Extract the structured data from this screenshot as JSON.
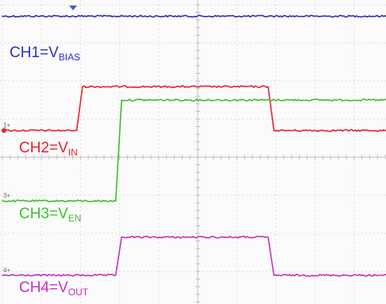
{
  "chart_data": {
    "type": "line",
    "grid": true,
    "grid_divisions": {
      "horizontal": 10,
      "vertical": 8
    },
    "trigger_marker_color": "#3a5fcd",
    "series": [
      {
        "channel": "CH1",
        "label_prefix": "CH1=V",
        "label_subscript": "BIAS",
        "marker": "",
        "color": "#2a32b8",
        "level_divisions": [
          [
            0,
            0.3
          ],
          [
            10,
            0.3
          ]
        ]
      },
      {
        "channel": "CH2",
        "label_prefix": "CH2=V",
        "label_subscript": "IN",
        "marker": "1",
        "color": "#e8212f",
        "level_divisions": [
          [
            0,
            3.3
          ],
          [
            1.9,
            3.3
          ],
          [
            2.05,
            2.15
          ],
          [
            6.8,
            2.15
          ],
          [
            6.95,
            3.3
          ],
          [
            10,
            3.3
          ]
        ]
      },
      {
        "channel": "CH3",
        "label_prefix": "CH3=V",
        "label_subscript": "EN",
        "marker": "3",
        "color": "#3cbf2a",
        "level_divisions": [
          [
            0,
            5.15
          ],
          [
            2.9,
            5.15
          ],
          [
            3.05,
            2.5
          ],
          [
            10,
            2.5
          ]
        ]
      },
      {
        "channel": "CH4",
        "label_prefix": "CH4=V",
        "label_subscript": "OUT",
        "marker": "4",
        "color": "#c630c6",
        "level_divisions": [
          [
            0,
            7.1
          ],
          [
            2.9,
            7.1
          ],
          [
            3.05,
            6.1
          ],
          [
            6.8,
            6.1
          ],
          [
            6.95,
            7.1
          ],
          [
            10,
            7.1
          ]
        ]
      }
    ]
  }
}
